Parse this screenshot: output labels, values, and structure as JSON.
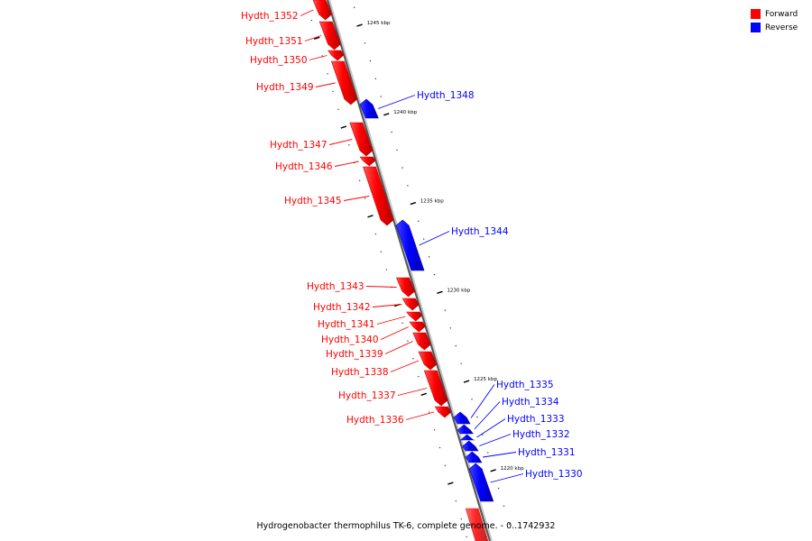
{
  "legend": {
    "forward_label": "Forward",
    "reverse_label": "Reverse",
    "forward_color": "#ff0000",
    "reverse_color": "#0000ff"
  },
  "caption": "Hydrogenobacter thermophilus TK-6, complete genome. - 0..1742932",
  "chart_data": {
    "type": "genome-map",
    "tick_unit": "kbp",
    "major_ticks_kbp": [
      1245,
      1240,
      1235,
      1230,
      1225,
      1220
    ],
    "genes": [
      {
        "name": "Hydth_1352",
        "strand": "forward"
      },
      {
        "name": "Hydth_1351",
        "strand": "forward"
      },
      {
        "name": "Hydth_1350",
        "strand": "forward"
      },
      {
        "name": "Hydth_1349",
        "strand": "forward"
      },
      {
        "name": "Hydth_1348",
        "strand": "reverse"
      },
      {
        "name": "Hydth_1347",
        "strand": "forward"
      },
      {
        "name": "Hydth_1346",
        "strand": "forward"
      },
      {
        "name": "Hydth_1345",
        "strand": "forward"
      },
      {
        "name": "Hydth_1344",
        "strand": "reverse"
      },
      {
        "name": "Hydth_1343",
        "strand": "forward"
      },
      {
        "name": "Hydth_1342",
        "strand": "forward"
      },
      {
        "name": "Hydth_1341",
        "strand": "forward"
      },
      {
        "name": "Hydth_1340",
        "strand": "forward"
      },
      {
        "name": "Hydth_1339",
        "strand": "forward"
      },
      {
        "name": "Hydth_1338",
        "strand": "forward"
      },
      {
        "name": "Hydth_1337",
        "strand": "forward"
      },
      {
        "name": "Hydth_1336",
        "strand": "forward"
      },
      {
        "name": "Hydth_1335",
        "strand": "reverse"
      },
      {
        "name": "Hydth_1334",
        "strand": "reverse"
      },
      {
        "name": "Hydth_1333",
        "strand": "reverse"
      },
      {
        "name": "Hydth_1332",
        "strand": "reverse"
      },
      {
        "name": "Hydth_1331",
        "strand": "reverse"
      },
      {
        "name": "Hydth_1330",
        "strand": "reverse"
      }
    ]
  }
}
